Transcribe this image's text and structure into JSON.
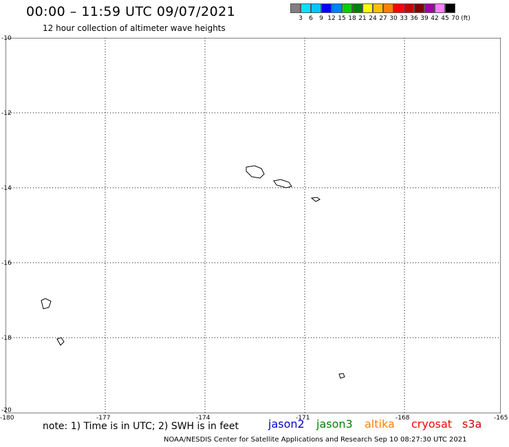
{
  "header": {
    "title": "00:00 – 11:59 UTC 09/07/2021",
    "subtitle": "12 hour collection of altimeter wave heights"
  },
  "color_scale": {
    "colors": [
      "#808080",
      "#00e5ff",
      "#00c8ff",
      "#0000ff",
      "#0080ff",
      "#00d000",
      "#008000",
      "#ffff00",
      "#ffbf00",
      "#ff8000",
      "#ff0000",
      "#c80000",
      "#800000",
      "#a000a0",
      "#ff80ff",
      "#000000"
    ],
    "labels": [
      "3",
      "6",
      "9",
      "12",
      "15",
      "18",
      "21",
      "24",
      "27",
      "30",
      "33",
      "36",
      "39",
      "42",
      "45",
      "70",
      "(ft)"
    ]
  },
  "axes": {
    "x_ticks": [
      "-180",
      "-177",
      "-174",
      "-171",
      "-168",
      "-165"
    ],
    "y_ticks": [
      "-10",
      "-12",
      "-14",
      "-16",
      "-18",
      "-20"
    ]
  },
  "notes": {
    "text": "note: 1) Time is in UTC; 2) SWH is in feet"
  },
  "legend": [
    {
      "name": "jason2",
      "color": "#0000cc"
    },
    {
      "name": "jason3",
      "color": "#008000"
    },
    {
      "name": "altika",
      "color": "#ff8000"
    },
    {
      "name": "cryosat",
      "color": "#ff0000"
    },
    {
      "name": "s3a",
      "color": "#cc0000"
    }
  ],
  "footer": {
    "text": "NOAA/NESDIS Center for Satellite Applications and Research   Sep 10 08:27:30 UTC 2021"
  }
}
